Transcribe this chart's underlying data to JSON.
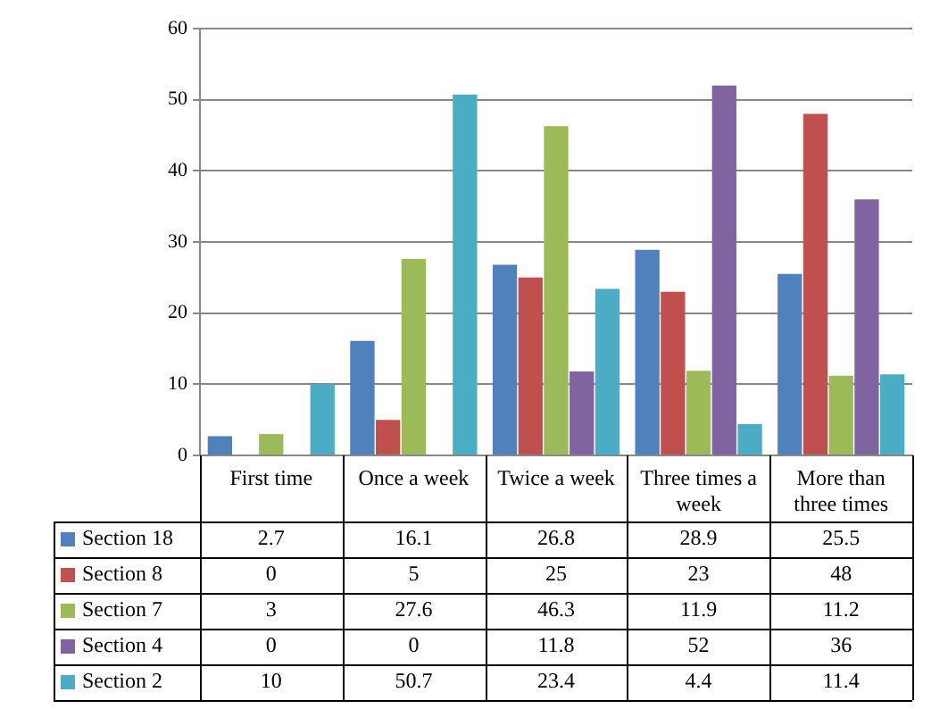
{
  "chart_data": {
    "type": "bar",
    "categories": [
      "First time",
      "Once a week",
      "Twice a week",
      "Three times a week",
      "More than three times"
    ],
    "series": [
      {
        "name": "Section 18",
        "color": "#4f81bd",
        "values": [
          2.7,
          16.1,
          26.8,
          28.9,
          25.5
        ]
      },
      {
        "name": "Section 8",
        "color": "#c0504d",
        "values": [
          0,
          5,
          25,
          23,
          48
        ]
      },
      {
        "name": "Section 7",
        "color": "#9bbb59",
        "values": [
          3,
          27.6,
          46.3,
          11.9,
          11.2
        ]
      },
      {
        "name": "Section 4",
        "color": "#8064a2",
        "values": [
          0,
          0,
          11.8,
          52,
          36
        ]
      },
      {
        "name": "Section 2",
        "color": "#4bacc6",
        "values": [
          10,
          50.7,
          23.4,
          4.4,
          11.4
        ]
      }
    ],
    "ylim": [
      0,
      60
    ],
    "yticks": [
      0,
      10,
      20,
      30,
      40,
      50,
      60
    ],
    "grid": "y",
    "legend": "bottom",
    "data_labels": true
  }
}
